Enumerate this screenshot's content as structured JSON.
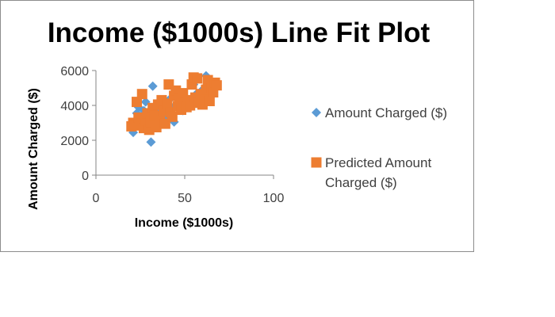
{
  "chart_data": {
    "type": "scatter",
    "title": "Income ($1000s) Line Fit  Plot",
    "xlabel": "Income ($1000s)",
    "ylabel": "Amount Charged ($)",
    "xlim": [
      0,
      100
    ],
    "ylim": [
      0,
      6000
    ],
    "xticks": [
      "0",
      "50",
      "100"
    ],
    "yticks": [
      "0",
      "2000",
      "4000",
      "6000"
    ],
    "grid": false,
    "legend_position": "right",
    "series": [
      {
        "name": "Amount Charged ($)",
        "marker": "diamond",
        "color": "#5B9BD5",
        "points": [
          [
            21,
            2450
          ],
          [
            22,
            3100
          ],
          [
            23,
            3550
          ],
          [
            24,
            3900
          ],
          [
            25,
            3300
          ],
          [
            26,
            2800
          ],
          [
            27,
            3700
          ],
          [
            28,
            4200
          ],
          [
            29,
            3000
          ],
          [
            30,
            2600
          ],
          [
            31,
            1900
          ],
          [
            32,
            5100
          ],
          [
            33,
            3400
          ],
          [
            34,
            2900
          ],
          [
            35,
            3800
          ],
          [
            36,
            4100
          ],
          [
            37,
            3200
          ],
          [
            38,
            3600
          ],
          [
            40,
            3350
          ],
          [
            41,
            4300
          ],
          [
            42,
            3950
          ],
          [
            44,
            3050
          ],
          [
            45,
            4800
          ],
          [
            47,
            4200
          ],
          [
            49,
            3700
          ],
          [
            50,
            4450
          ],
          [
            52,
            3900
          ],
          [
            55,
            5200
          ],
          [
            56,
            4600
          ],
          [
            58,
            4100
          ],
          [
            60,
            4900
          ],
          [
            62,
            5700
          ],
          [
            63,
            4350
          ],
          [
            65,
            5000
          ],
          [
            66,
            4700
          ]
        ]
      },
      {
        "name": "Predicted Amount Charged ($)",
        "marker": "square",
        "color": "#ED7D31",
        "points": [
          [
            20,
            2800
          ],
          [
            21,
            3000
          ],
          [
            22,
            2850
          ],
          [
            23,
            4200
          ],
          [
            24,
            3300
          ],
          [
            25,
            2950
          ],
          [
            26,
            4650
          ],
          [
            27,
            2700
          ],
          [
            28,
            3150
          ],
          [
            29,
            3550
          ],
          [
            30,
            2600
          ],
          [
            31,
            3050
          ],
          [
            32,
            3850
          ],
          [
            33,
            3400
          ],
          [
            34,
            2750
          ],
          [
            35,
            4050
          ],
          [
            36,
            3250
          ],
          [
            37,
            4300
          ],
          [
            38,
            3700
          ],
          [
            39,
            2950
          ],
          [
            40,
            4100
          ],
          [
            41,
            5200
          ],
          [
            42,
            3600
          ],
          [
            43,
            3350
          ],
          [
            44,
            4550
          ],
          [
            45,
            4850
          ],
          [
            46,
            3950
          ],
          [
            47,
            4400
          ],
          [
            48,
            3750
          ],
          [
            49,
            4700
          ],
          [
            50,
            4200
          ],
          [
            51,
            3900
          ],
          [
            52,
            4300
          ],
          [
            53,
            4000
          ],
          [
            54,
            5200
          ],
          [
            55,
            5600
          ],
          [
            56,
            4450
          ],
          [
            57,
            5550
          ],
          [
            58,
            4150
          ],
          [
            59,
            4650
          ],
          [
            60,
            4050
          ],
          [
            61,
            4500
          ],
          [
            62,
            4900
          ],
          [
            63,
            5450
          ],
          [
            64,
            4250
          ],
          [
            65,
            5000
          ],
          [
            66,
            4750
          ],
          [
            67,
            5300
          ],
          [
            68,
            5150
          ]
        ]
      }
    ]
  }
}
